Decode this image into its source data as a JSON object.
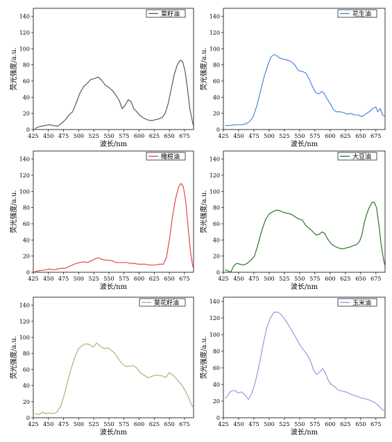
{
  "chart_data": [
    {
      "type": "line",
      "legend": "菜籽油",
      "color": "#4a4a4a",
      "xlabel": "波长/nm",
      "ylabel": "荧光强度/a.u.",
      "xlim": [
        425,
        690
      ],
      "ylim": [
        0,
        150
      ],
      "xticks": [
        425,
        450,
        475,
        500,
        525,
        550,
        575,
        600,
        625,
        650,
        675
      ],
      "yticks": [
        0,
        20,
        40,
        60,
        80,
        100,
        120,
        140
      ],
      "legend_position": "top-right",
      "points": [
        [
          428,
          1
        ],
        [
          432,
          3
        ],
        [
          438,
          4
        ],
        [
          445,
          5
        ],
        [
          452,
          6
        ],
        [
          458,
          5
        ],
        [
          465,
          4
        ],
        [
          472,
          8
        ],
        [
          478,
          12
        ],
        [
          484,
          18
        ],
        [
          490,
          22
        ],
        [
          496,
          33
        ],
        [
          502,
          45
        ],
        [
          508,
          53
        ],
        [
          514,
          57
        ],
        [
          520,
          62
        ],
        [
          526,
          63
        ],
        [
          532,
          65
        ],
        [
          538,
          61
        ],
        [
          544,
          55
        ],
        [
          550,
          52
        ],
        [
          556,
          48
        ],
        [
          562,
          42
        ],
        [
          567,
          36
        ],
        [
          572,
          26
        ],
        [
          577,
          30
        ],
        [
          582,
          37
        ],
        [
          587,
          34
        ],
        [
          591,
          26
        ],
        [
          596,
          22
        ],
        [
          602,
          17
        ],
        [
          608,
          14
        ],
        [
          614,
          12
        ],
        [
          620,
          11
        ],
        [
          626,
          12
        ],
        [
          632,
          13
        ],
        [
          638,
          15
        ],
        [
          643,
          20
        ],
        [
          648,
          32
        ],
        [
          653,
          50
        ],
        [
          658,
          68
        ],
        [
          663,
          80
        ],
        [
          668,
          86
        ],
        [
          672,
          84
        ],
        [
          676,
          72
        ],
        [
          680,
          50
        ],
        [
          684,
          25
        ],
        [
          688,
          10
        ],
        [
          690,
          4
        ]
      ]
    },
    {
      "type": "line",
      "legend": "花生油",
      "color": "#3a7bd5",
      "xlabel": "波长/nm",
      "ylabel": "荧光强度/a.u.",
      "xlim": [
        425,
        690
      ],
      "ylim": [
        0,
        150
      ],
      "xticks": [
        425,
        450,
        475,
        500,
        525,
        550,
        575,
        600,
        625,
        650,
        675
      ],
      "yticks": [
        0,
        20,
        40,
        60,
        80,
        100,
        120,
        140
      ],
      "legend_position": "top-right",
      "points": [
        [
          428,
          5
        ],
        [
          435,
          5
        ],
        [
          445,
          6
        ],
        [
          455,
          6
        ],
        [
          462,
          7
        ],
        [
          468,
          10
        ],
        [
          474,
          16
        ],
        [
          480,
          30
        ],
        [
          486,
          48
        ],
        [
          492,
          66
        ],
        [
          498,
          80
        ],
        [
          503,
          90
        ],
        [
          508,
          93
        ],
        [
          513,
          91
        ],
        [
          518,
          88
        ],
        [
          524,
          87
        ],
        [
          530,
          86
        ],
        [
          536,
          84
        ],
        [
          542,
          80
        ],
        [
          548,
          73
        ],
        [
          554,
          72
        ],
        [
          560,
          70
        ],
        [
          566,
          62
        ],
        [
          571,
          53
        ],
        [
          576,
          46
        ],
        [
          581,
          44
        ],
        [
          586,
          47
        ],
        [
          590,
          45
        ],
        [
          595,
          38
        ],
        [
          600,
          32
        ],
        [
          605,
          25
        ],
        [
          610,
          22
        ],
        [
          616,
          22
        ],
        [
          622,
          21
        ],
        [
          628,
          19
        ],
        [
          634,
          20
        ],
        [
          640,
          18
        ],
        [
          646,
          18
        ],
        [
          652,
          16
        ],
        [
          658,
          19
        ],
        [
          664,
          22
        ],
        [
          670,
          26
        ],
        [
          675,
          28
        ],
        [
          678,
          22
        ],
        [
          682,
          26
        ],
        [
          686,
          18
        ],
        [
          690,
          16
        ]
      ]
    },
    {
      "type": "line",
      "legend": "橄榄油",
      "color": "#e8323a",
      "xlabel": "波长/nm",
      "ylabel": "荧光强度/a.u.",
      "xlim": [
        425,
        690
      ],
      "ylim": [
        0,
        150
      ],
      "xticks": [
        425,
        450,
        475,
        500,
        525,
        550,
        575,
        600,
        625,
        650,
        675
      ],
      "yticks": [
        0,
        20,
        40,
        60,
        80,
        100,
        120,
        140
      ],
      "legend_position": "top-right",
      "points": [
        [
          428,
          1
        ],
        [
          435,
          2
        ],
        [
          445,
          3
        ],
        [
          452,
          4
        ],
        [
          458,
          3
        ],
        [
          465,
          4
        ],
        [
          472,
          5
        ],
        [
          478,
          5
        ],
        [
          484,
          7
        ],
        [
          490,
          9
        ],
        [
          496,
          11
        ],
        [
          502,
          12
        ],
        [
          508,
          13
        ],
        [
          514,
          12
        ],
        [
          520,
          14
        ],
        [
          526,
          16
        ],
        [
          532,
          18
        ],
        [
          538,
          16
        ],
        [
          544,
          15
        ],
        [
          550,
          15
        ],
        [
          556,
          14
        ],
        [
          562,
          12
        ],
        [
          568,
          12
        ],
        [
          574,
          12
        ],
        [
          580,
          12
        ],
        [
          586,
          11
        ],
        [
          592,
          11
        ],
        [
          598,
          10
        ],
        [
          604,
          10
        ],
        [
          610,
          10
        ],
        [
          616,
          9
        ],
        [
          622,
          9
        ],
        [
          628,
          9
        ],
        [
          634,
          10
        ],
        [
          640,
          10
        ],
        [
          645,
          18
        ],
        [
          650,
          40
        ],
        [
          655,
          68
        ],
        [
          660,
          90
        ],
        [
          665,
          105
        ],
        [
          669,
          110
        ],
        [
          673,
          106
        ],
        [
          677,
          88
        ],
        [
          681,
          55
        ],
        [
          685,
          25
        ],
        [
          688,
          10
        ],
        [
          690,
          4
        ]
      ]
    },
    {
      "type": "line",
      "legend": "大豆油",
      "color": "#1a6b12",
      "xlabel": "波长/nm",
      "ylabel": "荧光强度/a.u.",
      "xlim": [
        425,
        690
      ],
      "ylim": [
        0,
        150
      ],
      "xticks": [
        425,
        450,
        475,
        500,
        525,
        550,
        575,
        600,
        625,
        650,
        675
      ],
      "yticks": [
        0,
        20,
        40,
        60,
        80,
        100,
        120,
        140
      ],
      "legend_position": "top-right",
      "points": [
        [
          428,
          3
        ],
        [
          432,
          2
        ],
        [
          437,
          0
        ],
        [
          442,
          8
        ],
        [
          447,
          11
        ],
        [
          452,
          10
        ],
        [
          458,
          9
        ],
        [
          464,
          11
        ],
        [
          470,
          15
        ],
        [
          476,
          20
        ],
        [
          482,
          35
        ],
        [
          488,
          52
        ],
        [
          494,
          65
        ],
        [
          500,
          72
        ],
        [
          506,
          75
        ],
        [
          512,
          77
        ],
        [
          518,
          76
        ],
        [
          524,
          74
        ],
        [
          530,
          73
        ],
        [
          536,
          72
        ],
        [
          542,
          69
        ],
        [
          548,
          66
        ],
        [
          554,
          65
        ],
        [
          560,
          58
        ],
        [
          566,
          54
        ],
        [
          572,
          50
        ],
        [
          577,
          46
        ],
        [
          582,
          47
        ],
        [
          587,
          50
        ],
        [
          591,
          48
        ],
        [
          596,
          41
        ],
        [
          602,
          35
        ],
        [
          608,
          32
        ],
        [
          614,
          30
        ],
        [
          620,
          29
        ],
        [
          626,
          30
        ],
        [
          632,
          31
        ],
        [
          638,
          33
        ],
        [
          643,
          34
        ],
        [
          648,
          38
        ],
        [
          652,
          46
        ],
        [
          656,
          62
        ],
        [
          660,
          72
        ],
        [
          664,
          80
        ],
        [
          668,
          86
        ],
        [
          672,
          87
        ],
        [
          676,
          80
        ],
        [
          680,
          58
        ],
        [
          684,
          32
        ],
        [
          688,
          14
        ],
        [
          690,
          8
        ]
      ]
    },
    {
      "type": "line",
      "legend": "葵花籽油",
      "color": "#b5a46a",
      "xlabel": "波长/nm",
      "ylabel": "荧光强度/a.u.",
      "xlim": [
        425,
        690
      ],
      "ylim": [
        0,
        150
      ],
      "xticks": [
        425,
        450,
        475,
        500,
        525,
        550,
        575,
        600,
        625,
        650,
        675
      ],
      "yticks": [
        0,
        20,
        40,
        60,
        80,
        100,
        120,
        140
      ],
      "legend_position": "top-right",
      "points": [
        [
          428,
          5
        ],
        [
          434,
          4
        ],
        [
          440,
          7
        ],
        [
          446,
          5
        ],
        [
          452,
          6
        ],
        [
          458,
          5
        ],
        [
          464,
          7
        ],
        [
          470,
          14
        ],
        [
          476,
          28
        ],
        [
          482,
          46
        ],
        [
          488,
          62
        ],
        [
          494,
          76
        ],
        [
          500,
          86
        ],
        [
          506,
          90
        ],
        [
          512,
          92
        ],
        [
          518,
          91
        ],
        [
          524,
          88
        ],
        [
          530,
          93
        ],
        [
          536,
          89
        ],
        [
          542,
          86
        ],
        [
          548,
          87
        ],
        [
          554,
          84
        ],
        [
          560,
          80
        ],
        [
          566,
          73
        ],
        [
          572,
          67
        ],
        [
          578,
          64
        ],
        [
          584,
          64
        ],
        [
          590,
          65
        ],
        [
          596,
          62
        ],
        [
          602,
          56
        ],
        [
          608,
          53
        ],
        [
          614,
          50
        ],
        [
          620,
          51
        ],
        [
          626,
          53
        ],
        [
          632,
          53
        ],
        [
          638,
          52
        ],
        [
          644,
          50
        ],
        [
          650,
          56
        ],
        [
          656,
          53
        ],
        [
          662,
          48
        ],
        [
          667,
          44
        ],
        [
          671,
          40
        ],
        [
          676,
          34
        ],
        [
          682,
          25
        ],
        [
          686,
          17
        ],
        [
          690,
          12
        ]
      ]
    },
    {
      "type": "line",
      "legend": "玉米油",
      "color": "#a882d8",
      "xlabel": "波长/nm",
      "ylabel": "荧光强度/a.u.",
      "xlim": [
        425,
        690
      ],
      "ylim": [
        0,
        145
      ],
      "xticks": [
        425,
        450,
        475,
        500,
        525,
        550,
        575,
        600,
        625,
        650,
        675
      ],
      "yticks": [
        0,
        20,
        40,
        60,
        80,
        100,
        120,
        140
      ],
      "legend_position": "top-right",
      "points": [
        [
          428,
          23
        ],
        [
          432,
          27
        ],
        [
          437,
          32
        ],
        [
          443,
          33
        ],
        [
          449,
          30
        ],
        [
          455,
          31
        ],
        [
          461,
          27
        ],
        [
          466,
          22
        ],
        [
          472,
          30
        ],
        [
          478,
          45
        ],
        [
          484,
          65
        ],
        [
          490,
          88
        ],
        [
          496,
          108
        ],
        [
          502,
          120
        ],
        [
          508,
          127
        ],
        [
          514,
          127
        ],
        [
          520,
          124
        ],
        [
          526,
          118
        ],
        [
          532,
          111
        ],
        [
          538,
          104
        ],
        [
          544,
          96
        ],
        [
          550,
          88
        ],
        [
          556,
          82
        ],
        [
          562,
          76
        ],
        [
          568,
          68
        ],
        [
          573,
          57
        ],
        [
          578,
          52
        ],
        [
          583,
          55
        ],
        [
          588,
          59
        ],
        [
          592,
          54
        ],
        [
          597,
          45
        ],
        [
          602,
          40
        ],
        [
          608,
          37
        ],
        [
          614,
          33
        ],
        [
          620,
          32
        ],
        [
          626,
          31
        ],
        [
          632,
          29
        ],
        [
          638,
          27
        ],
        [
          644,
          26
        ],
        [
          650,
          24
        ],
        [
          656,
          23
        ],
        [
          662,
          22
        ],
        [
          668,
          20
        ],
        [
          674,
          18
        ],
        [
          680,
          14
        ],
        [
          685,
          10
        ],
        [
          690,
          8
        ]
      ]
    }
  ]
}
